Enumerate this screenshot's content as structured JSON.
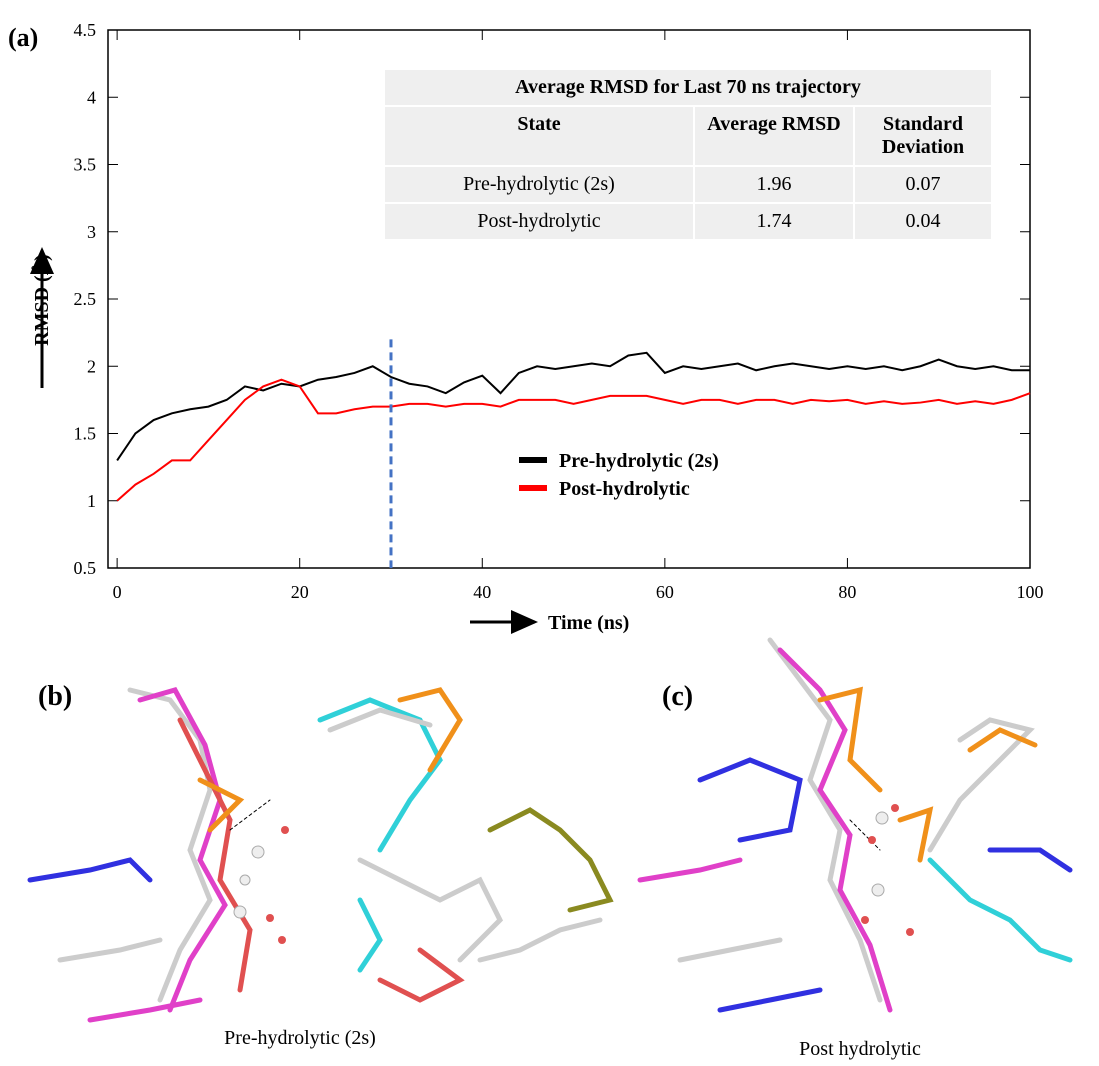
{
  "chart_data": {
    "type": "line",
    "panel_label": "(a)",
    "xlabel": "Time (ns)",
    "ylabel": "RMSD (Å)",
    "xlim": [
      -1,
      100
    ],
    "ylim": [
      0.5,
      4.5
    ],
    "xticks": [
      0,
      20,
      40,
      60,
      80,
      100
    ],
    "yticks": [
      0.5,
      1,
      1.5,
      2,
      2.5,
      3,
      3.5,
      4,
      4.5
    ],
    "vline": {
      "value": 30,
      "color": "#4472c4"
    },
    "legend_loc": "lower center",
    "x": [
      0,
      2,
      4,
      6,
      8,
      10,
      12,
      14,
      16,
      18,
      20,
      22,
      24,
      26,
      28,
      30,
      32,
      34,
      36,
      38,
      40,
      42,
      44,
      46,
      48,
      50,
      52,
      54,
      56,
      58,
      60,
      62,
      64,
      66,
      68,
      70,
      72,
      74,
      76,
      78,
      80,
      82,
      84,
      86,
      88,
      90,
      92,
      94,
      96,
      98,
      100
    ],
    "series": [
      {
        "name": "Pre-hydrolytic (2s)",
        "color": "#000000",
        "values": [
          1.3,
          1.5,
          1.6,
          1.65,
          1.68,
          1.7,
          1.75,
          1.85,
          1.82,
          1.87,
          1.85,
          1.9,
          1.92,
          1.95,
          2.0,
          1.92,
          1.87,
          1.85,
          1.8,
          1.88,
          1.93,
          1.8,
          1.95,
          2.0,
          1.98,
          2.0,
          2.02,
          2.0,
          2.08,
          2.1,
          1.95,
          2.0,
          1.98,
          2.0,
          2.02,
          1.97,
          2.0,
          2.02,
          2.0,
          1.98,
          2.0,
          1.98,
          2.0,
          1.97,
          2.0,
          2.05,
          2.0,
          1.98,
          2.0,
          1.97,
          1.97
        ]
      },
      {
        "name": "Post-hydrolytic",
        "color": "#ff0000",
        "values": [
          1.0,
          1.12,
          1.2,
          1.3,
          1.3,
          1.45,
          1.6,
          1.75,
          1.85,
          1.9,
          1.85,
          1.65,
          1.65,
          1.68,
          1.7,
          1.7,
          1.72,
          1.72,
          1.7,
          1.72,
          1.72,
          1.7,
          1.75,
          1.75,
          1.75,
          1.72,
          1.75,
          1.78,
          1.78,
          1.78,
          1.75,
          1.72,
          1.75,
          1.75,
          1.72,
          1.75,
          1.75,
          1.72,
          1.75,
          1.74,
          1.75,
          1.72,
          1.74,
          1.72,
          1.73,
          1.75,
          1.72,
          1.74,
          1.72,
          1.75,
          1.8
        ]
      }
    ]
  },
  "table": {
    "title": "Average RMSD for Last 70 ns trajectory",
    "header": [
      "State",
      "Average RMSD",
      "Standard Deviation"
    ],
    "rows": [
      [
        "Pre-hydrolytic (2s)",
        1.96,
        0.07
      ],
      [
        "Post-hydrolytic",
        1.74,
        0.04
      ]
    ]
  },
  "panels": [
    {
      "label": "(b)",
      "caption": "Pre-hydrolytic (2s)"
    },
    {
      "label": "(c)",
      "caption": "Post hydrolytic"
    }
  ]
}
